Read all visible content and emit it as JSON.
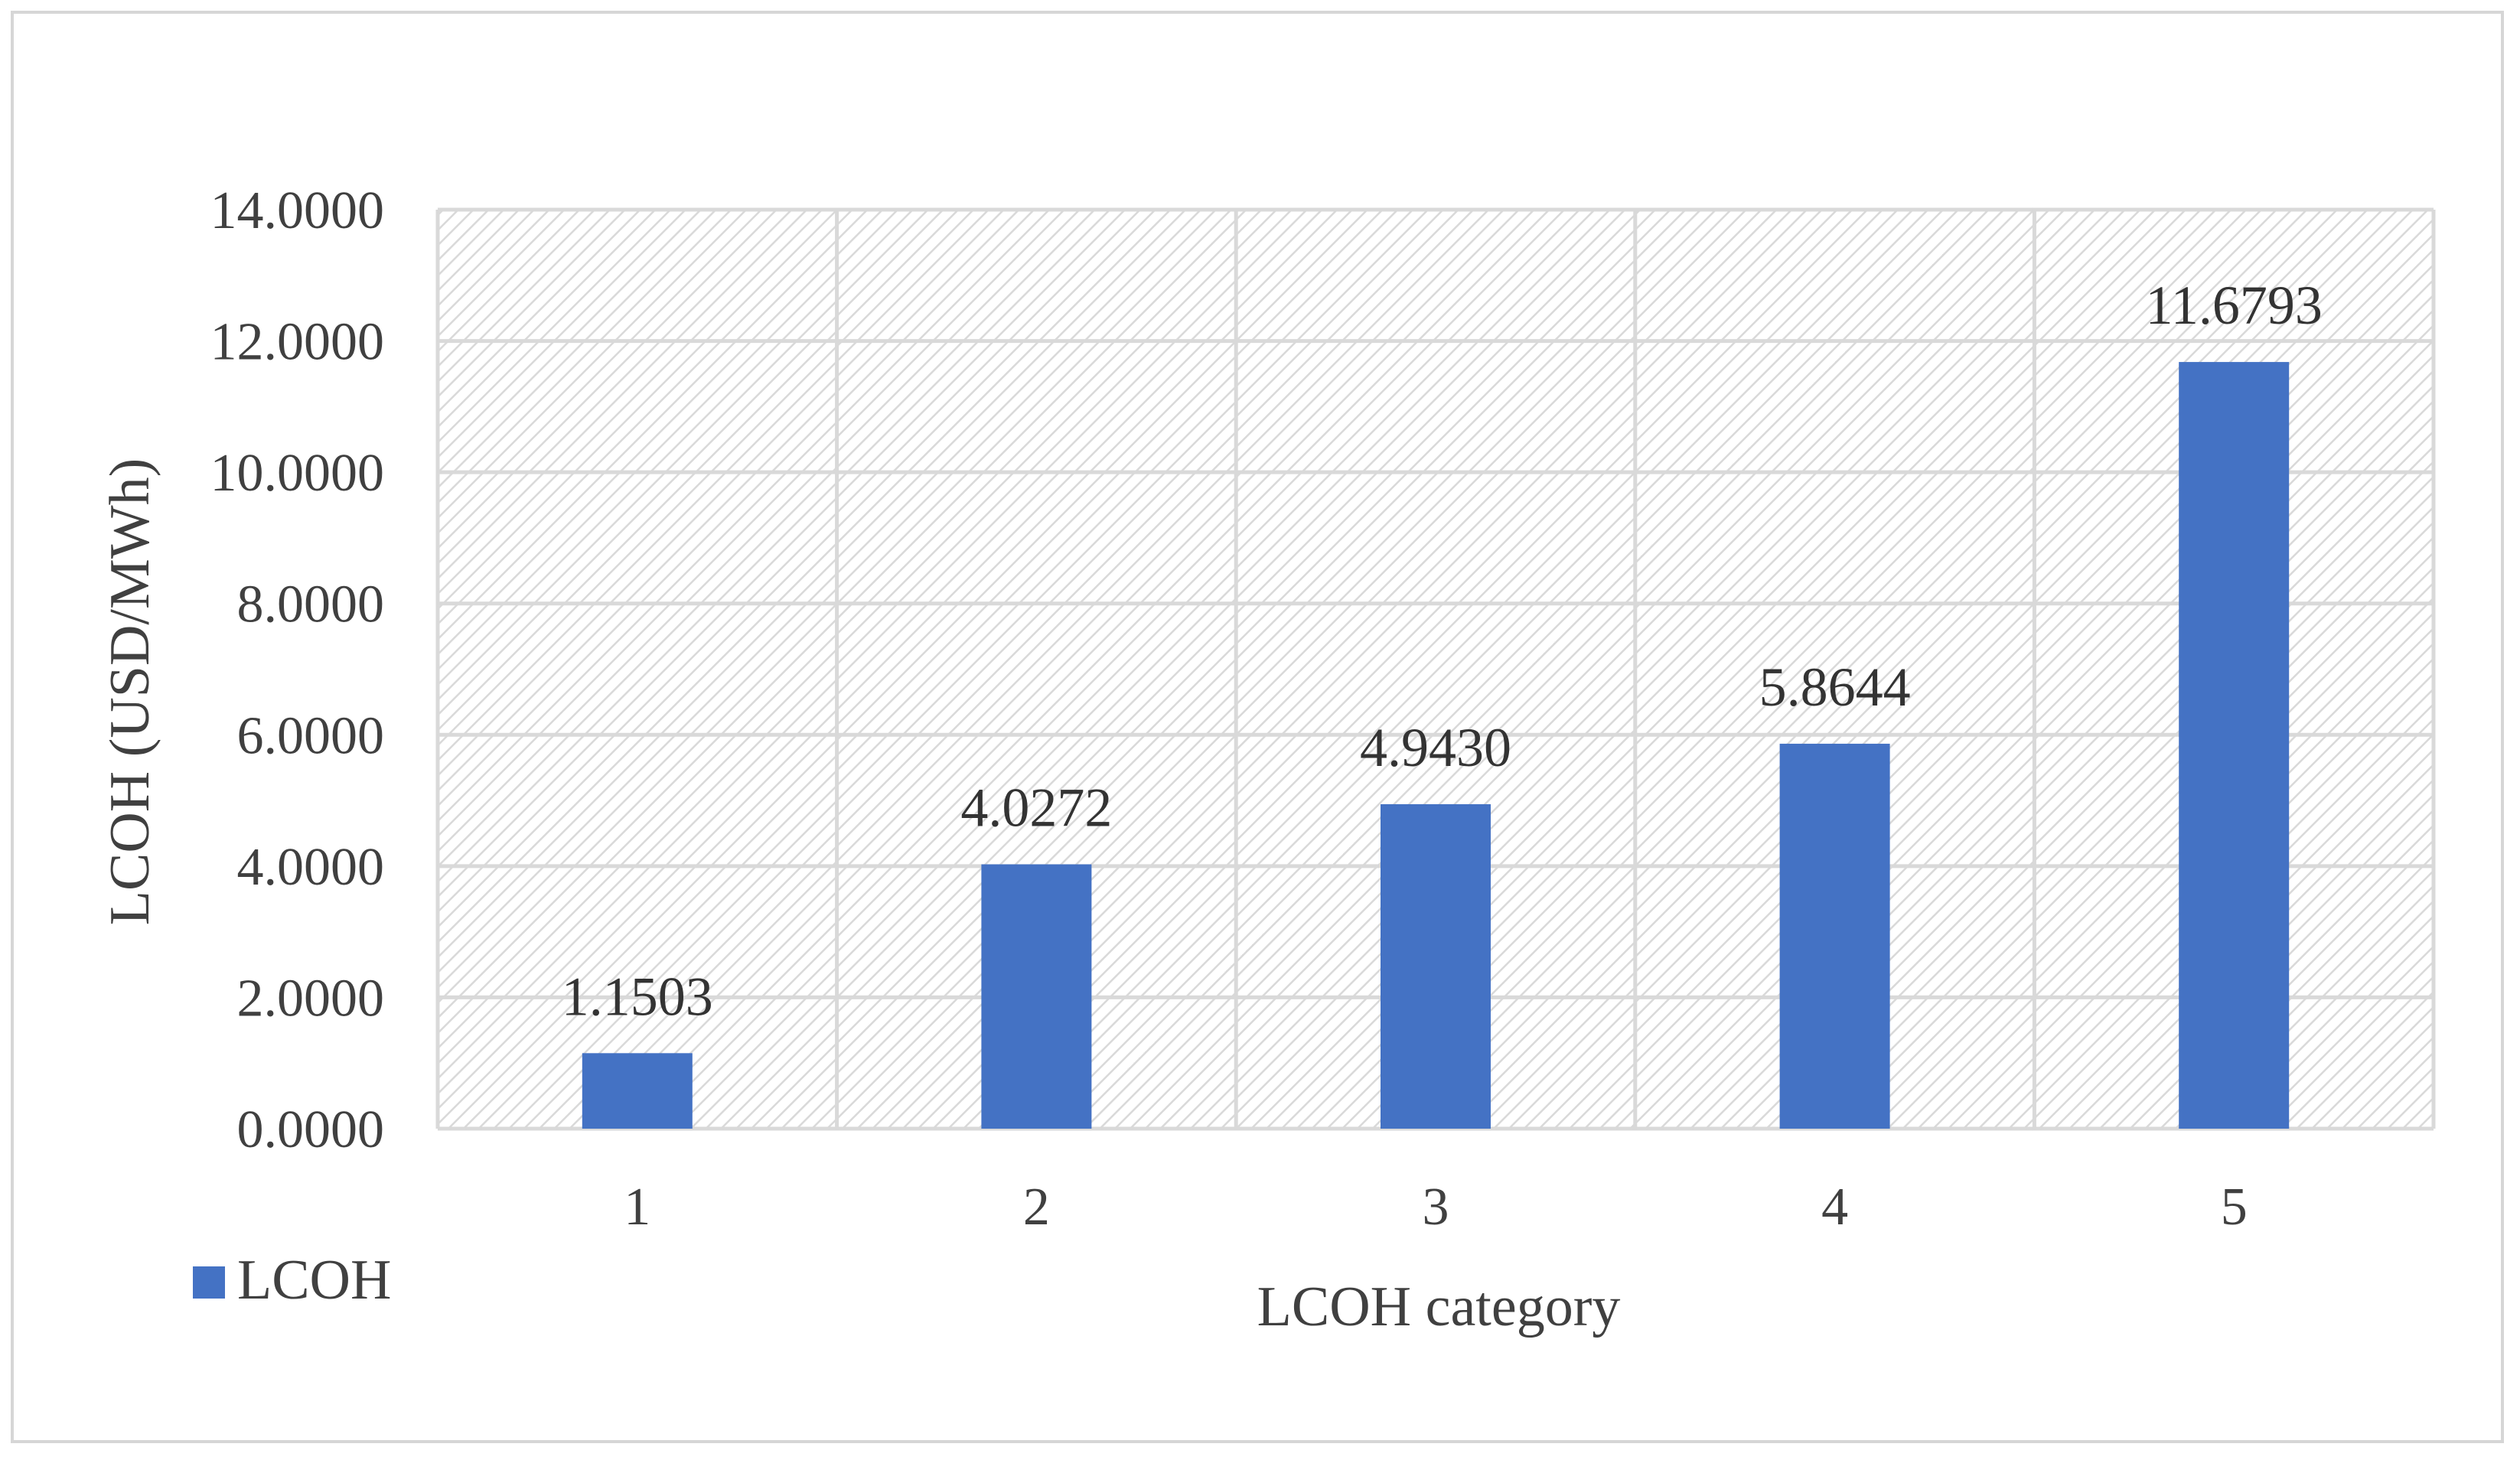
{
  "chart_data": {
    "type": "bar",
    "categories": [
      "1",
      "2",
      "3",
      "4",
      "5"
    ],
    "series": [
      {
        "name": "LCOH",
        "values": [
          1.1503,
          4.0272,
          4.943,
          5.8644,
          11.6793
        ],
        "color": "#4472c4"
      }
    ],
    "data_labels": [
      "1.1503",
      "4.0272",
      "4.9430",
      "5.8644",
      "11.6793"
    ],
    "xlabel": "LCOH category",
    "ylabel": "LCOH (USD/MWh)",
    "ylim": [
      0,
      14
    ],
    "yticks": [
      0,
      2,
      4,
      6,
      8,
      10,
      12,
      14
    ],
    "ytick_labels": [
      "0.0000",
      "2.0000",
      "4.0000",
      "6.0000",
      "8.0000",
      "10.0000",
      "12.0000",
      "14.0000"
    ],
    "grid": true,
    "plot_background": "diagonal-hatch",
    "legend": {
      "position": "bottom-left",
      "entries": [
        "LCOH"
      ]
    }
  }
}
